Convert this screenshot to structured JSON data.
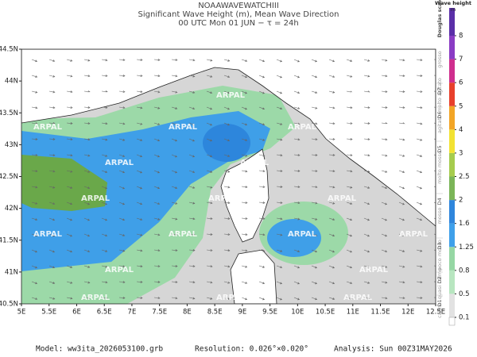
{
  "header": {
    "title": "NOAAWAVEWATCHIII",
    "subtitle": "Significant Wave Height (m), Mean Wave Direction",
    "time": "00 UTC Mon 01 JUN  −  τ = 24h"
  },
  "map": {
    "lon_ticks": [
      {
        "value": 5,
        "label": "5E"
      },
      {
        "value": 5.5,
        "label": "5.5E"
      },
      {
        "value": 6,
        "label": "6E"
      },
      {
        "value": 6.5,
        "label": "6.5E"
      },
      {
        "value": 7,
        "label": "7E"
      },
      {
        "value": 7.5,
        "label": "7.5E"
      },
      {
        "value": 8,
        "label": "8E"
      },
      {
        "value": 8.5,
        "label": "8.5E"
      },
      {
        "value": 9,
        "label": "9E"
      },
      {
        "value": 9.5,
        "label": "9.5E"
      },
      {
        "value": 10,
        "label": "10E"
      },
      {
        "value": 10.5,
        "label": "10.5E"
      },
      {
        "value": 11,
        "label": "11E"
      },
      {
        "value": 11.5,
        "label": "11.5E"
      },
      {
        "value": 12,
        "label": "12E"
      },
      {
        "value": 12.5,
        "label": "12.5E"
      }
    ],
    "lat_ticks": [
      {
        "value": 40.5,
        "label": "40.5N"
      },
      {
        "value": 41,
        "label": "41N"
      },
      {
        "value": 41.5,
        "label": "41.5N"
      },
      {
        "value": 42,
        "label": "42N"
      },
      {
        "value": 42.5,
        "label": "42.5N"
      },
      {
        "value": 43,
        "label": "43N"
      },
      {
        "value": 43.5,
        "label": "43.5N"
      },
      {
        "value": 44,
        "label": "44N"
      },
      {
        "value": 44.5,
        "label": "44.5N"
      }
    ],
    "watermark": "ARPAL"
  },
  "colorbar": {
    "title": "Wave height",
    "unit": "m",
    "levels": [
      0.1,
      0.5,
      0.8,
      1.25,
      1.6,
      2,
      2.5,
      3,
      4,
      5,
      6,
      7,
      8
    ],
    "colors": [
      "#e2e2e2",
      "#b8e6c0",
      "#96d7a4",
      "#3fa0ea",
      "#2f86dc",
      "#7bb558",
      "#a6cc4e",
      "#f2e233",
      "#f2a526",
      "#e8402c",
      "#cf2e8e",
      "#8a3cc4"
    ]
  },
  "douglas": {
    "title": "Douglas scale",
    "items": [
      {
        "code": "D1",
        "label": "calmo"
      },
      {
        "code": "D2",
        "label": "quasi calmo"
      },
      {
        "code": "D3",
        "label": "poco mosso"
      },
      {
        "code": "D4",
        "label": "mosso"
      },
      {
        "code": "D5",
        "label": "molto mosso"
      },
      {
        "code": "D6",
        "label": "agitato"
      },
      {
        "code": "D7",
        "label": "molto agitato"
      },
      {
        "code": "",
        "label": "grosso"
      }
    ]
  },
  "footer": {
    "model": "Model: ww3ita_2026053100.grb",
    "resolution": "Resolution: 0.026°×0.020°",
    "analysis": "Analysis: Sun 00Z31MAY2026"
  }
}
